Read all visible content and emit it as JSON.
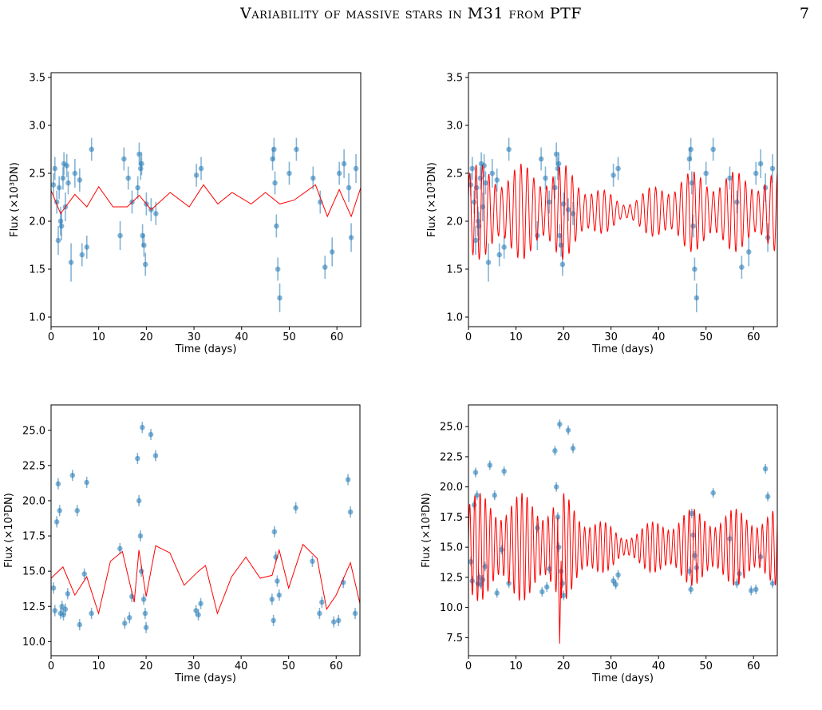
{
  "page": {
    "running_title": "Variability of massive stars in M31 from PTF",
    "page_number": "7"
  },
  "chart_data": [
    {
      "type": "scatter",
      "panel": "top-left",
      "title": "",
      "xlabel": "Time (days)",
      "ylabel": "Flux (×10³DN)",
      "xlim": [
        0,
        65
      ],
      "ylim": [
        0.9,
        3.55
      ],
      "xticks": [
        "0",
        "10",
        "20",
        "30",
        "40",
        "50",
        "60"
      ],
      "yticks": [
        "1.0",
        "1.5",
        "2.0",
        "2.5",
        "3.0",
        "3.5"
      ],
      "marker_color": "#1f77b4",
      "model_color": "#ff0000",
      "points": {
        "x": [
          0.5,
          0.8,
          1.2,
          1.5,
          1.7,
          2.0,
          2.2,
          2.5,
          2.7,
          3.0,
          3.3,
          3.6,
          4.2,
          5.0,
          6.0,
          6.5,
          7.5,
          8.5,
          14.5,
          15.3,
          16.2,
          17.0,
          18.2,
          18.5,
          18.8,
          19.0,
          19.2,
          19.5,
          19.8,
          20.0,
          21.0,
          22.0,
          30.5,
          31.5,
          46.5,
          46.8,
          47.0,
          47.3,
          47.6,
          48.0,
          50.0,
          51.5,
          55.0,
          56.5,
          57.5,
          59.0,
          60.5,
          61.5,
          62.5,
          63.0,
          64.0
        ],
        "y": [
          2.38,
          2.55,
          2.2,
          1.8,
          2.35,
          2.0,
          1.95,
          2.45,
          2.6,
          2.15,
          2.58,
          2.4,
          1.57,
          2.5,
          2.43,
          1.65,
          1.73,
          2.75,
          1.85,
          2.65,
          2.45,
          2.2,
          2.35,
          2.7,
          2.55,
          2.6,
          1.85,
          1.75,
          1.55,
          2.18,
          2.12,
          2.08,
          2.48,
          2.55,
          2.65,
          2.75,
          2.4,
          1.95,
          1.5,
          1.2,
          2.5,
          2.75,
          2.45,
          2.2,
          1.52,
          1.68,
          2.5,
          2.6,
          2.35,
          1.83,
          2.55
        ],
        "err": [
          0.12,
          0.12,
          0.12,
          0.15,
          0.12,
          0.15,
          0.15,
          0.12,
          0.12,
          0.15,
          0.12,
          0.12,
          0.2,
          0.15,
          0.12,
          0.12,
          0.12,
          0.12,
          0.15,
          0.12,
          0.12,
          0.12,
          0.12,
          0.12,
          0.12,
          0.12,
          0.12,
          0.12,
          0.12,
          0.12,
          0.12,
          0.12,
          0.12,
          0.12,
          0.12,
          0.12,
          0.12,
          0.12,
          0.12,
          0.15,
          0.12,
          0.12,
          0.12,
          0.12,
          0.12,
          0.15,
          0.12,
          0.15,
          0.15,
          0.15,
          0.15
        ]
      },
      "model": {
        "x": [
          0,
          2,
          5,
          7.5,
          10,
          13,
          16,
          18.5,
          21,
          25,
          29,
          32,
          35,
          38,
          42,
          45,
          48,
          51,
          55.5,
          58,
          60.5,
          63,
          65
        ],
        "y": [
          2.32,
          2.08,
          2.28,
          2.15,
          2.36,
          2.15,
          2.15,
          2.27,
          2.12,
          2.3,
          2.15,
          2.38,
          2.18,
          2.3,
          2.18,
          2.3,
          2.18,
          2.22,
          2.38,
          2.05,
          2.33,
          2.05,
          2.35
        ]
      }
    },
    {
      "type": "scatter",
      "panel": "top-right",
      "title": "",
      "xlabel": "Time (days)",
      "ylabel": "Flux (×10³DN)",
      "xlim": [
        0,
        65
      ],
      "ylim": [
        0.9,
        3.55
      ],
      "xticks": [
        "0",
        "10",
        "20",
        "30",
        "40",
        "50",
        "60"
      ],
      "yticks": [
        "1.0",
        "1.5",
        "2.0",
        "2.5",
        "3.0",
        "3.5"
      ],
      "marker_color": "#1f77b4",
      "model_color": "#ff0000",
      "points": {
        "x": [
          0.5,
          0.8,
          1.2,
          1.5,
          1.7,
          2.0,
          2.2,
          2.5,
          2.7,
          3.0,
          3.3,
          3.6,
          4.2,
          5.0,
          6.0,
          6.5,
          7.5,
          8.5,
          14.5,
          15.3,
          16.2,
          17.0,
          18.2,
          18.5,
          18.8,
          19.0,
          19.2,
          19.5,
          19.8,
          20.0,
          21.0,
          22.0,
          30.5,
          31.5,
          46.5,
          46.8,
          47.0,
          47.3,
          47.6,
          48.0,
          50.0,
          51.5,
          55.0,
          56.5,
          57.5,
          59.0,
          60.5,
          61.5,
          62.5,
          63.0,
          64.0
        ],
        "y": [
          2.38,
          2.55,
          2.2,
          1.8,
          2.35,
          2.0,
          1.95,
          2.45,
          2.6,
          2.15,
          2.58,
          2.4,
          1.57,
          2.5,
          2.43,
          1.65,
          1.73,
          2.75,
          1.85,
          2.65,
          2.45,
          2.2,
          2.35,
          2.7,
          2.55,
          2.6,
          1.85,
          1.75,
          1.55,
          2.18,
          2.12,
          2.08,
          2.48,
          2.55,
          2.65,
          2.75,
          2.4,
          1.95,
          1.5,
          1.2,
          2.5,
          2.75,
          2.45,
          2.2,
          1.52,
          1.68,
          2.5,
          2.6,
          2.35,
          1.83,
          2.55
        ],
        "err": [
          0.12,
          0.12,
          0.12,
          0.15,
          0.12,
          0.15,
          0.15,
          0.12,
          0.12,
          0.15,
          0.12,
          0.12,
          0.2,
          0.15,
          0.12,
          0.12,
          0.12,
          0.12,
          0.15,
          0.12,
          0.12,
          0.12,
          0.12,
          0.12,
          0.12,
          0.12,
          0.12,
          0.12,
          0.12,
          0.12,
          0.12,
          0.12,
          0.12,
          0.12,
          0.12,
          0.12,
          0.12,
          0.12,
          0.12,
          0.15,
          0.12,
          0.12,
          0.12,
          0.12,
          0.12,
          0.15,
          0.12,
          0.15,
          0.15,
          0.15,
          0.15
        ]
      },
      "model_wave": {
        "base": 2.1,
        "period": 1.35,
        "amp_start": 0.5,
        "amp_mid": 0.12,
        "amp_end": 0.42,
        "phase": 0.4
      }
    },
    {
      "type": "scatter",
      "panel": "bottom-left",
      "title": "",
      "xlabel": "Time (days)",
      "ylabel": "Flux (×10³DN)",
      "xlim": [
        0,
        65
      ],
      "ylim": [
        9.0,
        26.8
      ],
      "xticks": [
        "0",
        "10",
        "20",
        "30",
        "40",
        "50",
        "60"
      ],
      "yticks": [
        "10.0",
        "12.5",
        "15.0",
        "17.5",
        "20.0",
        "22.5",
        "25.0"
      ],
      "marker_color": "#1f77b4",
      "model_color": "#ff0000",
      "points": {
        "x": [
          0.5,
          0.8,
          1.2,
          1.5,
          1.8,
          2.0,
          2.3,
          2.6,
          3.0,
          3.5,
          4.5,
          5.5,
          6.0,
          7.0,
          7.5,
          8.5,
          14.5,
          15.5,
          16.5,
          17.0,
          18.2,
          18.5,
          18.8,
          19.0,
          19.2,
          19.5,
          19.8,
          20.0,
          21.0,
          22.0,
          30.5,
          31.0,
          31.5,
          46.5,
          46.8,
          47.0,
          47.3,
          47.6,
          48.0,
          51.5,
          55.0,
          56.5,
          57.0,
          59.5,
          60.5,
          61.5,
          62.5,
          63.0,
          64.0
        ],
        "y": [
          13.8,
          12.2,
          18.5,
          21.2,
          19.3,
          12.0,
          12.5,
          11.9,
          12.3,
          13.4,
          21.8,
          19.3,
          11.2,
          14.8,
          21.3,
          12.0,
          16.6,
          11.3,
          11.7,
          13.2,
          23.0,
          20.0,
          17.5,
          15.0,
          25.2,
          13.0,
          12.0,
          11.0,
          24.7,
          23.2,
          12.2,
          11.9,
          12.7,
          13.0,
          11.5,
          17.8,
          16.0,
          14.3,
          13.3,
          19.5,
          15.7,
          12.0,
          12.8,
          11.4,
          11.5,
          14.2,
          21.5,
          19.2,
          12.0
        ],
        "err": [
          0.4,
          0.4,
          0.4,
          0.4,
          0.4,
          0.4,
          0.4,
          0.4,
          0.4,
          0.4,
          0.4,
          0.4,
          0.4,
          0.4,
          0.4,
          0.4,
          0.4,
          0.4,
          0.4,
          0.4,
          0.4,
          0.4,
          0.4,
          0.4,
          0.4,
          0.4,
          0.4,
          0.4,
          0.4,
          0.4,
          0.4,
          0.4,
          0.4,
          0.4,
          0.4,
          0.4,
          0.4,
          0.4,
          0.4,
          0.4,
          0.4,
          0.4,
          0.4,
          0.4,
          0.4,
          0.4,
          0.4,
          0.4,
          0.4
        ]
      },
      "model": {
        "x": [
          0,
          2.5,
          5,
          7.5,
          10,
          12.5,
          15,
          17.5,
          18.5,
          20,
          22,
          25,
          28,
          31,
          32.5,
          35,
          38,
          41,
          44,
          46.5,
          48,
          50,
          53,
          56,
          58,
          60,
          63,
          65
        ],
        "y": [
          14.5,
          15.3,
          13.3,
          14.6,
          12.0,
          15.7,
          16.4,
          12.8,
          16.5,
          13.2,
          16.8,
          16.3,
          14.0,
          15.0,
          15.4,
          12.0,
          14.6,
          16.0,
          14.5,
          14.7,
          16.5,
          13.8,
          16.9,
          15.9,
          12.3,
          13.3,
          15.6,
          12.7
        ]
      }
    },
    {
      "type": "scatter",
      "panel": "bottom-right",
      "title": "",
      "xlabel": "Time (days)",
      "ylabel": "Flux (×10³DN)",
      "xlim": [
        0,
        65
      ],
      "ylim": [
        6.0,
        26.8
      ],
      "xticks": [
        "0",
        "10",
        "20",
        "30",
        "40",
        "50",
        "60"
      ],
      "yticks": [
        "7.5",
        "10.0",
        "12.5",
        "15.0",
        "17.5",
        "20.0",
        "22.5",
        "25.0"
      ],
      "marker_color": "#1f77b4",
      "model_color": "#ff0000",
      "points": {
        "x": [
          0.5,
          0.8,
          1.2,
          1.5,
          1.8,
          2.0,
          2.3,
          2.6,
          3.0,
          3.5,
          4.5,
          5.5,
          6.0,
          7.0,
          7.5,
          8.5,
          14.5,
          15.5,
          16.5,
          17.0,
          18.2,
          18.5,
          18.8,
          19.0,
          19.2,
          19.5,
          19.8,
          20.0,
          21.0,
          22.0,
          30.5,
          31.0,
          31.5,
          46.5,
          46.8,
          47.0,
          47.3,
          47.6,
          48.0,
          51.5,
          55.0,
          56.5,
          57.0,
          59.5,
          60.5,
          61.5,
          62.5,
          63.0,
          64.0
        ],
        "y": [
          13.8,
          12.2,
          18.5,
          21.2,
          19.3,
          12.0,
          12.5,
          11.9,
          12.3,
          13.4,
          21.8,
          19.3,
          11.2,
          14.8,
          21.3,
          12.0,
          16.6,
          11.3,
          11.7,
          13.2,
          23.0,
          20.0,
          17.5,
          15.0,
          25.2,
          13.0,
          12.0,
          11.0,
          24.7,
          23.2,
          12.2,
          11.9,
          12.7,
          13.0,
          11.5,
          17.8,
          16.0,
          14.3,
          13.3,
          19.5,
          15.7,
          12.0,
          12.8,
          11.4,
          11.5,
          14.2,
          21.5,
          19.2,
          12.0
        ],
        "err": [
          0.4,
          0.4,
          0.4,
          0.4,
          0.4,
          0.4,
          0.4,
          0.4,
          0.4,
          0.4,
          0.4,
          0.4,
          0.4,
          0.4,
          0.4,
          0.4,
          0.4,
          0.4,
          0.4,
          0.4,
          0.4,
          0.4,
          0.4,
          0.4,
          0.4,
          0.4,
          0.4,
          0.4,
          0.4,
          0.4,
          0.4,
          0.4,
          0.4,
          0.4,
          0.4,
          0.4,
          0.4,
          0.4,
          0.4,
          0.4,
          0.4,
          0.4,
          0.4,
          0.4,
          0.4,
          0.4,
          0.4,
          0.4,
          0.4
        ]
      },
      "model_wave": {
        "base": 15.0,
        "period": 1.1,
        "amp_start": 4.5,
        "amp_mid": 1.2,
        "amp_end": 3.2,
        "phase": 0.1,
        "dip": {
          "x": 19.2,
          "y": 7.0
        }
      }
    }
  ]
}
